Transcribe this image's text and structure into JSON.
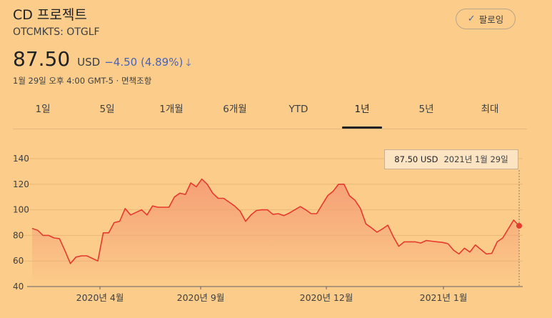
{
  "header": {
    "title": "CD 프로젝트",
    "ticker": "OTCMKTS: OTGLF",
    "follow_label": "팔로잉"
  },
  "quote": {
    "price": "87.50",
    "currency": "USD",
    "change": "−4.50 (4.89%)",
    "direction": "down",
    "timestamp": "1월 29일 오후 4:00 GMT-5 · 면책조항"
  },
  "tabs": [
    {
      "label": "1일",
      "active": false
    },
    {
      "label": "5일",
      "active": false
    },
    {
      "label": "1개월",
      "active": false
    },
    {
      "label": "6개월",
      "active": false
    },
    {
      "label": "YTD",
      "active": false
    },
    {
      "label": "1년",
      "active": true
    },
    {
      "label": "5년",
      "active": false
    },
    {
      "label": "최대",
      "active": false
    }
  ],
  "tooltip": {
    "price": "87.50 USD",
    "date": "2021년 1월 29일"
  },
  "colors": {
    "background": "#fccc8a",
    "line": "#e53a2d",
    "fill": "#f49a73",
    "accent_blue": "#4a63b5"
  },
  "chart_data": {
    "type": "area",
    "ylim": [
      40,
      140
    ],
    "yticks": [
      40,
      60,
      80,
      100,
      120,
      140
    ],
    "xtick_labels": [
      "2020년 4월",
      "2020년 9월",
      "2020년 12월",
      "2021년 1월"
    ],
    "grid": true,
    "series": [
      {
        "values": [
          85.5,
          84,
          80,
          80,
          78,
          77.5,
          68,
          58,
          63,
          64,
          64,
          62,
          60,
          82,
          82,
          90,
          91,
          101,
          96,
          98,
          100,
          96,
          103,
          102,
          102,
          102,
          110,
          113,
          112,
          121,
          118,
          124,
          120,
          113,
          109,
          109,
          106,
          103,
          99,
          91,
          96,
          99.5,
          100,
          100,
          96.5,
          97,
          95.5,
          97.5,
          100,
          102.5,
          100,
          97,
          97,
          104,
          111,
          114.5,
          120,
          120,
          111,
          107.5,
          101,
          89,
          86,
          82.5,
          85,
          88,
          79,
          71.5,
          75,
          75,
          75,
          74,
          76,
          75.5,
          75,
          74.5,
          73.5,
          68.5,
          65.5,
          70,
          67,
          72.5,
          69,
          65.5,
          66,
          75,
          78,
          85,
          92,
          87.5
        ]
      }
    ]
  }
}
